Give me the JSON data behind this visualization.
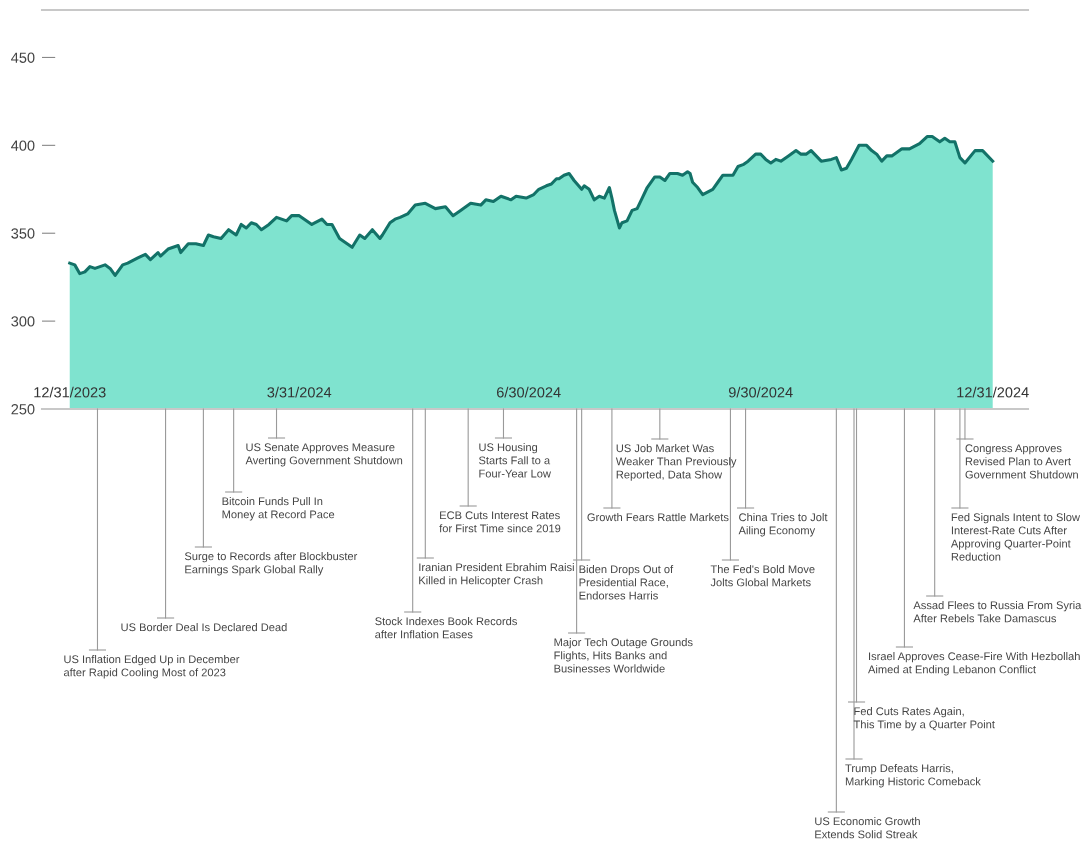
{
  "chart_data": {
    "type": "area",
    "x": [
      "2023-12-31",
      "2024-01-02",
      "2024-01-04",
      "2024-01-06",
      "2024-01-08",
      "2024-01-10",
      "2024-01-12",
      "2024-01-14",
      "2024-01-16",
      "2024-01-18",
      "2024-01-21",
      "2024-01-23",
      "2024-01-27",
      "2024-01-30",
      "2024-02-01",
      "2024-02-04",
      "2024-02-05",
      "2024-02-08",
      "2024-02-12",
      "2024-02-13",
      "2024-02-16",
      "2024-02-19",
      "2024-02-22",
      "2024-02-24",
      "2024-02-26",
      "2024-02-29",
      "2024-03-03",
      "2024-03-06",
      "2024-03-08",
      "2024-03-10",
      "2024-03-12",
      "2024-03-14",
      "2024-03-16",
      "2024-03-19",
      "2024-03-22",
      "2024-03-26",
      "2024-03-28",
      "2024-03-31",
      "2024-04-03",
      "2024-04-05",
      "2024-04-09",
      "2024-04-11",
      "2024-04-13",
      "2024-04-16",
      "2024-04-19",
      "2024-04-21",
      "2024-04-24",
      "2024-04-26",
      "2024-04-29",
      "2024-05-02",
      "2024-05-03",
      "2024-05-06",
      "2024-05-08",
      "2024-05-10",
      "2024-05-13",
      "2024-05-16",
      "2024-05-20",
      "2024-05-24",
      "2024-05-28",
      "2024-05-31",
      "2024-06-03",
      "2024-06-07",
      "2024-06-11",
      "2024-06-13",
      "2024-06-16",
      "2024-06-19",
      "2024-06-23",
      "2024-06-25",
      "2024-06-29",
      "2024-07-02",
      "2024-07-04",
      "2024-07-07",
      "2024-07-09",
      "2024-07-11",
      "2024-07-12",
      "2024-07-14",
      "2024-07-16",
      "2024-07-18",
      "2024-07-21",
      "2024-07-22",
      "2024-07-24",
      "2024-07-26",
      "2024-07-28",
      "2024-07-30",
      "2024-08-01",
      "2024-08-02",
      "2024-08-03",
      "2024-08-05",
      "2024-08-06",
      "2024-08-08",
      "2024-08-10",
      "2024-08-12",
      "2024-08-14",
      "2024-08-16",
      "2024-08-19",
      "2024-08-21",
      "2024-08-23",
      "2024-08-25",
      "2024-08-28",
      "2024-08-30",
      "2024-09-01",
      "2024-09-02",
      "2024-09-03",
      "2024-09-05",
      "2024-09-07",
      "2024-09-11",
      "2024-09-13",
      "2024-09-15",
      "2024-09-19",
      "2024-09-21",
      "2024-09-23",
      "2024-09-25",
      "2024-09-28",
      "2024-09-30",
      "2024-10-02",
      "2024-10-04",
      "2024-10-06",
      "2024-10-08",
      "2024-10-11",
      "2024-10-14",
      "2024-10-16",
      "2024-10-18",
      "2024-10-20",
      "2024-10-22",
      "2024-10-24",
      "2024-10-28",
      "2024-10-30",
      "2024-11-01",
      "2024-11-03",
      "2024-11-05",
      "2024-11-08",
      "2024-11-11",
      "2024-11-13",
      "2024-11-15",
      "2024-11-17",
      "2024-11-19",
      "2024-11-21",
      "2024-11-25",
      "2024-11-28",
      "2024-12-02",
      "2024-12-05",
      "2024-12-07",
      "2024-12-10",
      "2024-12-12",
      "2024-12-14",
      "2024-12-16",
      "2024-12-18",
      "2024-12-20",
      "2024-12-24",
      "2024-12-27",
      "2024-12-31"
    ],
    "series": [
      {
        "color": "#7fe3cf",
        "values": [
          333,
          332,
          327,
          328,
          331,
          330,
          331,
          332,
          330,
          326,
          332,
          333,
          336,
          338,
          335,
          339,
          337,
          341,
          343,
          339,
          344,
          344,
          343,
          349,
          348,
          347,
          352,
          349,
          355,
          353,
          356,
          355,
          352,
          355,
          359,
          357,
          360,
          360,
          357,
          355,
          358,
          355,
          355,
          347,
          344,
          342,
          349,
          347,
          352,
          347,
          349,
          356,
          358,
          359,
          361,
          366,
          367,
          364,
          365,
          360,
          363,
          367,
          366,
          369,
          368,
          371,
          369,
          371,
          370,
          372,
          375,
          377,
          378,
          381,
          381,
          383,
          384,
          380,
          375,
          377,
          375,
          369,
          371,
          370,
          376,
          370,
          363,
          353,
          356,
          357,
          363,
          364,
          370,
          376,
          382,
          382,
          380,
          384,
          384,
          383,
          385,
          384,
          379,
          376,
          372,
          375,
          379,
          383,
          383,
          388,
          389,
          391,
          395,
          395,
          392,
          390,
          392,
          391,
          394,
          397,
          395,
          395,
          397,
          394,
          391,
          392,
          393,
          386,
          387,
          392,
          400,
          400,
          397,
          395,
          391,
          394,
          394,
          398,
          398,
          401,
          405,
          405,
          402,
          404,
          402,
          402,
          393,
          390,
          397,
          397,
          391
        ]
      }
    ],
    "xlim": [
      "2023-12-20",
      "2025-01-14"
    ],
    "xticks": [
      {
        "value": "2023-12-31",
        "label": "12/31/2023"
      },
      {
        "value": "2024-03-31",
        "label": "3/31/2024"
      },
      {
        "value": "2024-06-30",
        "label": "6/30/2024"
      },
      {
        "value": "2024-09-30",
        "label": "9/30/2024"
      },
      {
        "value": "2024-12-31",
        "label": "12/31/2024"
      }
    ],
    "ylim": [
      250,
      477
    ],
    "yticks": [
      250,
      300,
      350,
      400,
      450
    ],
    "grid": false,
    "legend": false,
    "annotations": [
      {
        "text": "US Inflation Edged Up in December\nafter Rapid Cooling Most of 2023",
        "x": "2024-01-11",
        "y": 250
      },
      {
        "text": "US Border Deal Is Declared Dead",
        "x": "2024-02-07",
        "y": 250
      },
      {
        "text": "Surge to Records after Blockbuster\nEarnings Spark Global Rally",
        "x": "2024-02-22",
        "y": 250
      },
      {
        "text": "Bitcoin Funds Pull In\nMoney at Record Pace",
        "x": "2024-03-05",
        "y": 250
      },
      {
        "text": "US Senate Approves Measure\nAverting Government Shutdown",
        "x": "2024-03-22",
        "y": 250
      },
      {
        "text": "Stock Indexes Book Records\nafter Inflation Eases",
        "x": "2024-05-15",
        "y": 250
      },
      {
        "text": "Iranian President Ebrahim Raisi\nKilled in Helicopter Crash",
        "x": "2024-05-20",
        "y": 250
      },
      {
        "text": "ECB Cuts Interest Rates\nfor First Time since 2019",
        "x": "2024-06-06",
        "y": 250
      },
      {
        "text": "US Housing\nStarts Fall to a\nFour-Year Low",
        "x": "2024-06-20",
        "y": 250
      },
      {
        "text": "Major Tech Outage Grounds\nFlights, Hits Banks and\nBusinesses Worldwide",
        "x": "2024-07-19",
        "y": 250
      },
      {
        "text": "Biden Drops Out of\nPresidential Race,\nEndorses Harris",
        "x": "2024-07-21",
        "y": 250
      },
      {
        "text": "Growth Fears Rattle Markets",
        "x": "2024-08-02",
        "y": 250
      },
      {
        "text": "US Job Market Was\nWeaker Than Previously\nReported, Data Show",
        "x": "2024-08-21",
        "y": 250
      },
      {
        "text": "The Fed's Bold Move\nJolts Global Markets",
        "x": "2024-09-18",
        "y": 250
      },
      {
        "text": "China Tries to Jolt\nAiling Economy",
        "x": "2024-09-24",
        "y": 250
      },
      {
        "text": "US Economic Growth\nExtends Solid Streak",
        "x": "2024-10-30",
        "y": 250
      },
      {
        "text": "Trump Defeats Harris,\nMarking Historic Comeback",
        "x": "2024-11-06",
        "y": 250
      },
      {
        "text": "Fed Cuts Rates Again,\nThis Time by a Quarter Point",
        "x": "2024-11-07",
        "y": 250
      },
      {
        "text": "Israel Approves Cease-Fire With Hezbollah\nAimed at Ending Lebanon Conflict",
        "x": "2024-11-26",
        "y": 250
      },
      {
        "text": "Assad Flees to Russia From Syria\nAfter Rebels Take Damascus",
        "x": "2024-12-08",
        "y": 250
      },
      {
        "text": "Fed Signals Intent to Slow\nInterest-Rate Cuts After\nApproving Quarter-Point\nReduction",
        "x": "2024-12-18",
        "y": 250
      },
      {
        "text": "Congress Approves\nRevised Plan to Avert\nGovernment Shutdown",
        "x": "2024-12-20",
        "y": 250
      }
    ]
  }
}
